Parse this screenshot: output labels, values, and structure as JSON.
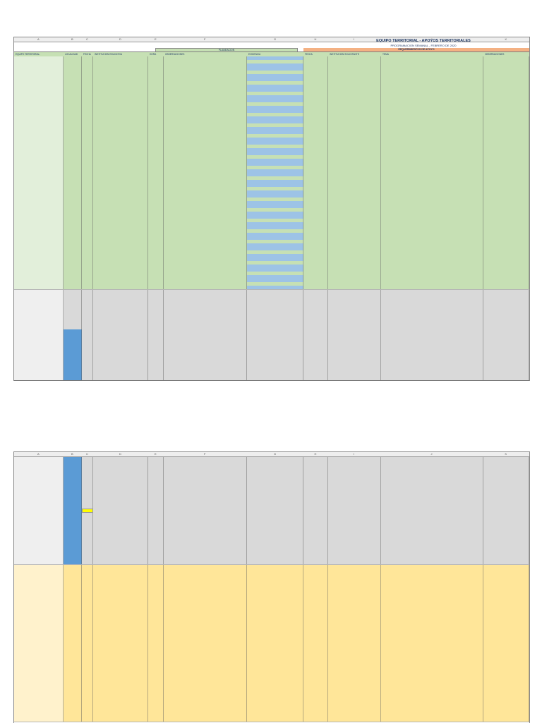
{
  "page1": {
    "title": "EQUIPO TERRITORIAL - APOYOS TERRITORIALES",
    "subtitle": "PROGRAMACION SEMANAL - FEBRERO DE 2020",
    "col_letters": [
      "A",
      "B",
      "C",
      "D",
      "E",
      "F",
      "G",
      "H",
      "I",
      "J",
      "K"
    ],
    "header_row": [
      "EQUIPO TERRITORIAL",
      "LOCALIDAD",
      "FECHA",
      "INSTITUCION EDUCATIVA",
      "HORA",
      "OBSERVACIONES",
      "EVIDENCIA",
      "FECHA",
      "INSTITUCION SOLICITANTE",
      "TEMA",
      "OBSERVACIONES"
    ],
    "section_header_mid": "PLANEACION",
    "section_header_right": "REQUERIMIENTOS DE APOYO",
    "groups": [
      {
        "label": "",
        "color": "#c6e0b4"
      },
      {
        "label": "",
        "color": "#d9d9d9"
      }
    ]
  },
  "page2": {
    "col_letters": [
      "A",
      "B",
      "C",
      "D",
      "E",
      "F",
      "G",
      "H",
      "I",
      "J",
      "K"
    ],
    "groups": [
      {
        "label": "",
        "color": "#d9d9d9"
      },
      {
        "label": "",
        "color": "#ffe699"
      }
    ]
  },
  "colors": {
    "green": "#c6e0b4",
    "green_light": "#e2efda",
    "grey": "#d9d9d9",
    "blue": "#5b9bd5",
    "blue_cell": "#9dc3e6",
    "yellow": "#ffe699",
    "orange": "#f4b183",
    "highlight": "#ffff00"
  }
}
